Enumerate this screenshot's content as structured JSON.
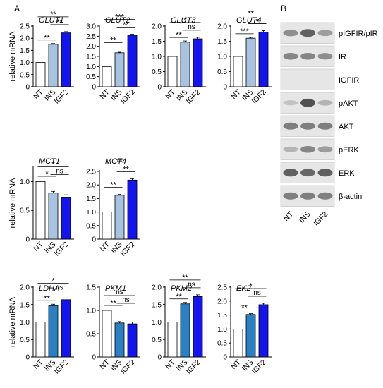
{
  "panels": {
    "a_label": "A",
    "b_label": "B"
  },
  "shared": {
    "ylabel": "relative mRNA",
    "categories": [
      "NT",
      "INS",
      "IGF2"
    ]
  },
  "colors": {
    "NT": "#ffffff",
    "INS_light": "#a6c3e2",
    "INS_mid": "#2a80c4",
    "IGF2": "#1414f0",
    "axis": "#000000"
  },
  "chart_data": [
    {
      "type": "bar",
      "title": "GLUT1",
      "categories": [
        "NT",
        "INS",
        "IGF2"
      ],
      "values": [
        1.0,
        1.75,
        2.22
      ],
      "errors": [
        0,
        0.03,
        0.05
      ],
      "ylim": [
        0,
        2.5
      ],
      "yticks": [
        "0",
        "0.5",
        "1.0",
        "1.5",
        "2.0",
        "2.5"
      ],
      "ins_shade": "light",
      "significance": [
        {
          "pair": [
            0,
            1
          ],
          "label": "**"
        },
        {
          "pair": [
            1,
            2
          ],
          "label": "**"
        },
        {
          "pair": [
            0,
            2
          ],
          "label": "**"
        }
      ]
    },
    {
      "type": "bar",
      "title": "GLUT2",
      "categories": [
        "NT",
        "INS",
        "IGF2"
      ],
      "values": [
        1.0,
        1.68,
        2.55
      ],
      "errors": [
        0,
        0.03,
        0.05
      ],
      "ylim": [
        0,
        3.0
      ],
      "yticks": [
        "0",
        "0.5",
        "1.0",
        "1.5",
        "2.0",
        "2.5",
        "3.0"
      ],
      "ins_shade": "light",
      "significance": [
        {
          "pair": [
            0,
            1
          ],
          "label": "**"
        },
        {
          "pair": [
            1,
            2
          ],
          "label": "**"
        },
        {
          "pair": [
            0,
            2
          ],
          "label": "***"
        }
      ]
    },
    {
      "type": "bar",
      "title": "GLUT3",
      "categories": [
        "NT",
        "INS",
        "IGF2"
      ],
      "values": [
        1.0,
        1.47,
        1.58
      ],
      "errors": [
        0,
        0.04,
        0.05
      ],
      "ylim": [
        0,
        2.0
      ],
      "yticks": [
        "0",
        "0.5",
        "1.0",
        "1.5",
        "2.0"
      ],
      "ins_shade": "light",
      "significance": [
        {
          "pair": [
            0,
            1
          ],
          "label": "**"
        },
        {
          "pair": [
            1,
            2
          ],
          "label": "ns"
        },
        {
          "pair": [
            0,
            2
          ],
          "label": "*"
        }
      ]
    },
    {
      "type": "bar",
      "title": "GLUT4",
      "categories": [
        "NT",
        "INS",
        "IGF2"
      ],
      "values": [
        1.0,
        1.6,
        1.8
      ],
      "errors": [
        0,
        0.03,
        0.05
      ],
      "ylim": [
        0,
        2.0
      ],
      "yticks": [
        "0",
        "0.5",
        "1.0",
        "1.5",
        "2.0"
      ],
      "ins_shade": "light",
      "significance": [
        {
          "pair": [
            0,
            1
          ],
          "label": "***"
        },
        {
          "pair": [
            1,
            2
          ],
          "label": "*"
        },
        {
          "pair": [
            0,
            2
          ],
          "label": "**"
        }
      ]
    },
    {
      "type": "bar",
      "title": "MCT1",
      "categories": [
        "NT",
        "INS",
        "IGF2"
      ],
      "values": [
        1.0,
        0.8,
        0.73
      ],
      "errors": [
        0,
        0.03,
        0.04
      ],
      "ylim": [
        0,
        1.25
      ],
      "yticks": [
        "0",
        "0.5",
        "1.0"
      ],
      "ins_shade": "light",
      "significance": [
        {
          "pair": [
            0,
            1
          ],
          "label": "*"
        },
        {
          "pair": [
            1,
            2
          ],
          "label": "ns"
        },
        {
          "pair": [
            0,
            2
          ],
          "label": "*"
        }
      ]
    },
    {
      "type": "bar",
      "title": "MCT4",
      "categories": [
        "NT",
        "INS",
        "IGF2"
      ],
      "values": [
        1.0,
        1.62,
        2.18
      ],
      "errors": [
        0,
        0.03,
        0.05
      ],
      "ylim": [
        0,
        2.5
      ],
      "yticks": [
        "0",
        "0.5",
        "1.0",
        "1.5",
        "2.0",
        "2.5"
      ],
      "ins_shade": "light",
      "significance": [
        {
          "pair": [
            0,
            1
          ],
          "label": "**"
        },
        {
          "pair": [
            1,
            2
          ],
          "label": "**"
        },
        {
          "pair": [
            0,
            2
          ],
          "label": "**"
        }
      ]
    },
    {
      "type": "bar",
      "title": "LDHA",
      "categories": [
        "NT",
        "INS",
        "IGF2"
      ],
      "values": [
        1.0,
        1.47,
        1.64
      ],
      "errors": [
        0,
        0.04,
        0.05
      ],
      "ylim": [
        0,
        2.0
      ],
      "yticks": [
        "0",
        "0.5",
        "1.0",
        "1.5",
        "2.0"
      ],
      "ins_shade": "mid",
      "significance": [
        {
          "pair": [
            0,
            1
          ],
          "label": "**"
        },
        {
          "pair": [
            1,
            2
          ],
          "label": "ns"
        },
        {
          "pair": [
            0,
            2
          ],
          "label": "*"
        }
      ]
    },
    {
      "type": "bar",
      "title": "PKM1",
      "categories": [
        "NT",
        "INS",
        "IGF2"
      ],
      "values": [
        1.0,
        0.73,
        0.71
      ],
      "errors": [
        0,
        0.03,
        0.04
      ],
      "ylim": [
        0,
        1.5
      ],
      "yticks": [
        "0",
        "0.5",
        "1.0",
        "1.5"
      ],
      "ins_shade": "mid",
      "significance": [
        {
          "pair": [
            0,
            1
          ],
          "label": "**"
        },
        {
          "pair": [
            1,
            2
          ],
          "label": "ns"
        },
        {
          "pair": [
            0,
            2
          ],
          "label": "ns"
        }
      ]
    },
    {
      "type": "bar",
      "title": "PKM2",
      "categories": [
        "NT",
        "INS",
        "IGF2"
      ],
      "values": [
        1.0,
        1.52,
        1.73
      ],
      "errors": [
        0,
        0.04,
        0.05
      ],
      "ylim": [
        0,
        2.0
      ],
      "yticks": [
        "0",
        "0.5",
        "1.0",
        "1.5",
        "2.0"
      ],
      "ins_shade": "mid",
      "significance": [
        {
          "pair": [
            0,
            1
          ],
          "label": "**"
        },
        {
          "pair": [
            1,
            2
          ],
          "label": "ns"
        },
        {
          "pair": [
            0,
            2
          ],
          "label": "**"
        }
      ]
    },
    {
      "type": "bar",
      "title": "EK2",
      "categories": [
        "NT",
        "INS",
        "IGF2"
      ],
      "values": [
        1.0,
        1.52,
        1.87
      ],
      "errors": [
        0,
        0.03,
        0.05
      ],
      "ylim": [
        0,
        2.5
      ],
      "yticks": [
        "0",
        "0.5",
        "1.0",
        "1.5",
        "2.0",
        "2.5"
      ],
      "ins_shade": "mid",
      "significance": [
        {
          "pair": [
            0,
            1
          ],
          "label": "**"
        },
        {
          "pair": [
            1,
            2
          ],
          "label": "ns"
        },
        {
          "pair": [
            0,
            2
          ],
          "label": "*"
        }
      ]
    }
  ],
  "blot": {
    "lanes": [
      "NT",
      "INS",
      "IGF2"
    ],
    "rows": [
      {
        "label": "pIGFIR/pIR",
        "intensity": [
          0.55,
          0.85,
          0.45
        ]
      },
      {
        "label": "IR",
        "intensity": [
          0.6,
          0.6,
          0.55
        ]
      },
      {
        "label": "IGFIR",
        "intensity": [
          0.0,
          0.0,
          0.0
        ]
      },
      {
        "label": "pAKT",
        "intensity": [
          0.2,
          0.95,
          0.3
        ]
      },
      {
        "label": "AKT",
        "intensity": [
          0.65,
          0.65,
          0.65
        ]
      },
      {
        "label": "pERK",
        "intensity": [
          0.3,
          0.6,
          0.45
        ]
      },
      {
        "label": "ERK",
        "intensity": [
          0.85,
          0.8,
          0.85
        ]
      },
      {
        "label": "β-actin",
        "intensity": [
          0.65,
          0.65,
          0.65
        ]
      }
    ]
  }
}
